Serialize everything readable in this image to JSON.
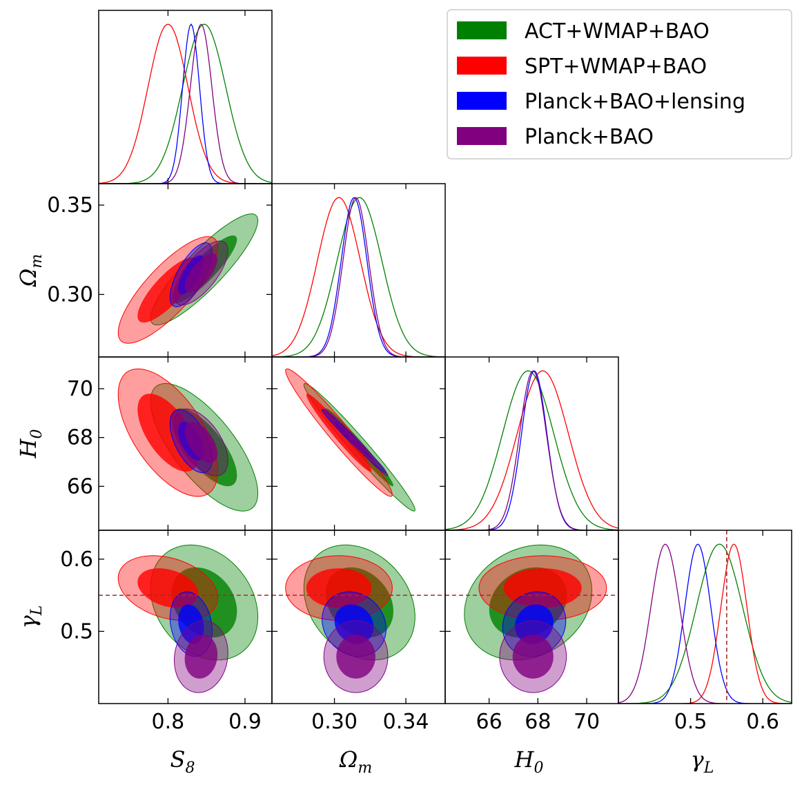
{
  "chart_data": {
    "type": "corner",
    "parameters": [
      {
        "symbol": "S",
        "sub": "8",
        "range": [
          0.71,
          0.935
        ],
        "ticks": [
          0.8,
          0.9
        ],
        "tick_labels": [
          "0.8",
          "0.9"
        ]
      },
      {
        "symbol": "Ω",
        "sub": "m",
        "range": [
          0.265,
          0.362
        ],
        "ticks": [
          0.3,
          0.35
        ],
        "tick_labels": [
          "0.30",
          "0.35"
        ]
      },
      {
        "symbol": "H",
        "sub": "0",
        "range": [
          64.2,
          71.3
        ],
        "ticks": [
          66,
          68,
          70
        ],
        "tick_labels": [
          "66",
          "68",
          "70"
        ]
      },
      {
        "symbol": "γ",
        "sub": "L",
        "range": [
          0.4,
          0.64
        ],
        "ticks": [
          0.5,
          0.6
        ],
        "tick_labels": [
          "0.5",
          "0.6"
        ]
      }
    ],
    "x_tick_overrides": {
      "1": {
        "ticks": [
          0.3,
          0.34
        ],
        "tick_labels": [
          "0.30",
          "0.34"
        ],
        "range": [
          0.265,
          0.362
        ]
      }
    },
    "reference_line": {
      "parameter": "γ_L",
      "value": 0.55,
      "color": "#a52a2a",
      "style": "dashed"
    },
    "legend": {
      "position": "top-right"
    },
    "series": [
      {
        "name": "ACT+WMAP+BAO",
        "color": "#008000",
        "mean": [
          0.847,
          0.314,
          67.6,
          0.54
        ],
        "sigma": [
          0.028,
          0.0125,
          1.05,
          0.032
        ],
        "corr": {
          "S8_Om": 0.88,
          "S8_H0": -0.72,
          "Om_H0": -0.98,
          "S8_gL": -0.25,
          "Om_gL": -0.25,
          "H0_gL": 0.2
        }
      },
      {
        "name": "SPT+WMAP+BAO",
        "color": "#ff0000",
        "mean": [
          0.8,
          0.3025,
          68.2,
          0.56
        ],
        "sigma": [
          0.026,
          0.012,
          1.05,
          0.018
        ],
        "corr": {
          "S8_Om": 0.8,
          "S8_H0": -0.6,
          "Om_H0": -0.97,
          "S8_gL": -0.3,
          "Om_gL": 0.0,
          "H0_gL": 0.0
        }
      },
      {
        "name": "Planck+BAO+lensing",
        "color": "#0000ff",
        "mean": [
          0.83,
          0.311,
          67.85,
          0.51
        ],
        "sigma": [
          0.011,
          0.0072,
          0.52,
          0.018
        ],
        "corr": {
          "S8_Om": 0.7,
          "S8_H0": -0.55,
          "Om_H0": -0.99,
          "S8_gL": -0.2,
          "Om_gL": -0.15,
          "H0_gL": 0.1
        }
      },
      {
        "name": "Planck+BAO",
        "color": "#800080",
        "mean": [
          0.843,
          0.312,
          67.8,
          0.465
        ],
        "sigma": [
          0.014,
          0.0072,
          0.55,
          0.02
        ],
        "corr": {
          "S8_Om": 0.7,
          "S8_H0": -0.55,
          "Om_H0": -0.99,
          "S8_gL": 0.1,
          "Om_gL": 0.0,
          "H0_gL": 0.0
        }
      }
    ]
  }
}
